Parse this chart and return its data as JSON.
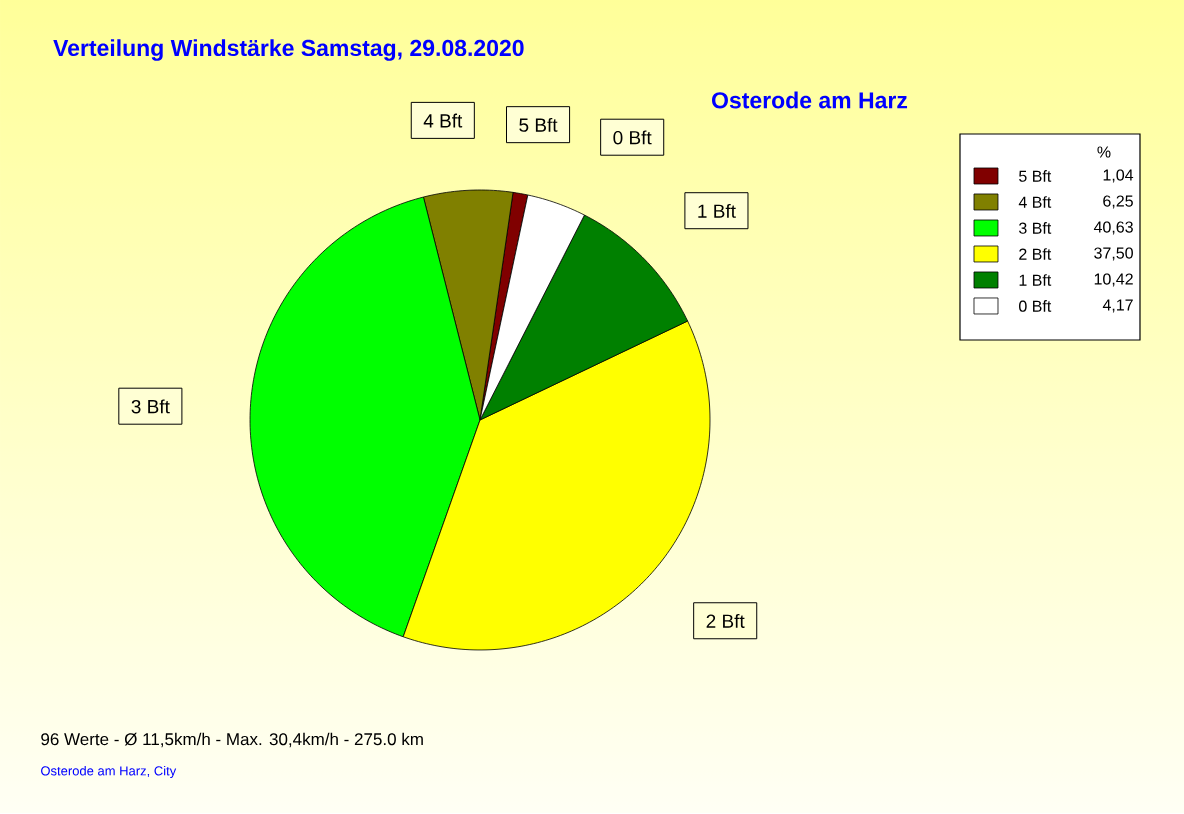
{
  "chart_data": {
    "type": "pie",
    "title": "Verteilung Windstärke  Samstag, 29.08.2020",
    "subtitle": "Osterode am Harz",
    "categories": [
      "5 Bft",
      "4 Bft",
      "3 Bft",
      "2 Bft",
      "1 Bft",
      "0 Bft"
    ],
    "values": [
      1.04,
      6.25,
      40.63,
      37.5,
      10.42,
      4.17
    ],
    "colors": [
      "#800000",
      "#808000",
      "#00ff00",
      "#ffff00",
      "#008000",
      "#ffffff"
    ],
    "value_labels": [
      "1,04",
      "6,25",
      "40,63",
      "37,50",
      "10,42",
      "4,17"
    ],
    "legend_title": "%",
    "legend": "top right",
    "annotations": [
      "96 Werte   -   Ø 11,5km/h  -  Max. 30,4km/h   -   275.0 km",
      "Osterode am Harz, City"
    ]
  }
}
